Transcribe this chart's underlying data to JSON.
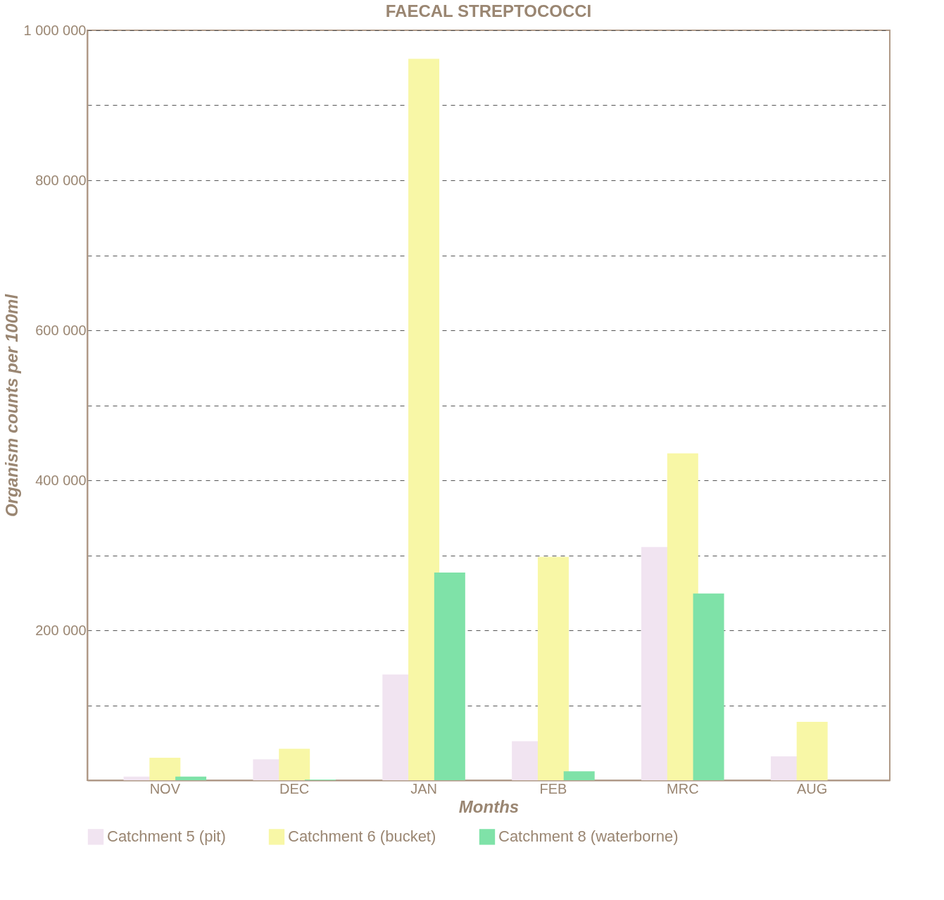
{
  "chart_data": {
    "type": "bar",
    "title": "FAECAL STREPTOCOCCI",
    "xlabel": "Months",
    "ylabel": "Organism counts per 100ml",
    "categories": [
      "NOV",
      "DEC",
      "JAN",
      "FEB",
      "MRC",
      "AUG"
    ],
    "series": [
      {
        "name": "Catchment 5 (pit)",
        "color": "#f1e4f1",
        "values": [
          5000,
          28000,
          141000,
          52000,
          311000,
          32000
        ]
      },
      {
        "name": "Catchment 6 (bucket)",
        "color": "#f8f7a6",
        "values": [
          30000,
          42000,
          962000,
          298000,
          436000,
          78000
        ]
      },
      {
        "name": "Catchment 8 (waterborne)",
        "color": "#7fe2a8",
        "values": [
          5000,
          1000,
          277000,
          12000,
          249000,
          0
        ]
      }
    ],
    "ylim": [
      0,
      1000000
    ],
    "yticks": [
      {
        "value": 100000,
        "label": null
      },
      {
        "value": 200000,
        "label": "200 000"
      },
      {
        "value": 300000,
        "label": null
      },
      {
        "value": 400000,
        "label": "400 000"
      },
      {
        "value": 500000,
        "label": null
      },
      {
        "value": 600000,
        "label": "600 000"
      },
      {
        "value": 700000,
        "label": null
      },
      {
        "value": 800000,
        "label": "800 000"
      },
      {
        "value": 900000,
        "label": null
      },
      {
        "value": 1000000,
        "label": "1 000 000"
      }
    ],
    "grid": "y",
    "legend": "bottom"
  }
}
